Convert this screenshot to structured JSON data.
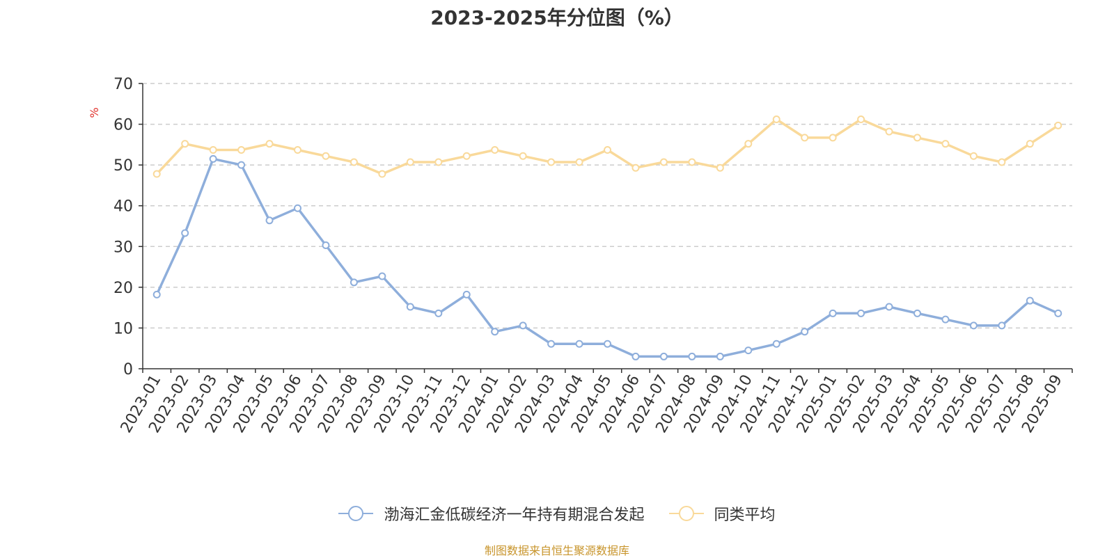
{
  "chart_data": {
    "type": "line",
    "title": "2023-2025年分位图（%）",
    "ylabel": "%",
    "xlabel": "",
    "ylim": [
      0,
      70
    ],
    "yticks": [
      0,
      10,
      20,
      30,
      40,
      50,
      60,
      70
    ],
    "grid": true,
    "legend_position": "bottom-center",
    "categories": [
      "2023-01",
      "2023-02",
      "2023-03",
      "2023-04",
      "2023-05",
      "2023-06",
      "2023-07",
      "2023-08",
      "2023-09",
      "2023-10",
      "2023-11",
      "2023-12",
      "2024-01",
      "2024-02",
      "2024-03",
      "2024-04",
      "2024-05",
      "2024-06",
      "2024-07",
      "2024-08",
      "2024-09",
      "2024-10",
      "2024-11",
      "2024-12",
      "2025-01",
      "2025-02",
      "2025-03",
      "2025-04",
      "2025-05",
      "2025-06",
      "2025-07",
      "2025-08",
      "2025-09"
    ],
    "series": [
      {
        "name": "渤海汇金低碳经济一年持有期混合发起",
        "color": "#8eaedb",
        "values": [
          18.2,
          33.3,
          51.5,
          50.0,
          36.4,
          39.4,
          30.3,
          21.2,
          22.7,
          15.2,
          13.6,
          18.2,
          9.1,
          10.6,
          6.1,
          6.1,
          6.1,
          3.0,
          3.0,
          3.0,
          3.0,
          4.5,
          6.1,
          9.1,
          13.6,
          13.6,
          15.2,
          13.6,
          12.1,
          10.6,
          10.6,
          16.7,
          13.6
        ]
      },
      {
        "name": "同类平均",
        "color": "#f9d99a",
        "values": [
          47.8,
          55.2,
          53.7,
          53.7,
          55.2,
          53.7,
          52.2,
          50.7,
          47.8,
          50.7,
          50.7,
          52.2,
          53.7,
          52.2,
          50.7,
          50.7,
          53.7,
          49.3,
          50.7,
          50.7,
          49.3,
          55.2,
          61.2,
          56.7,
          56.7,
          61.2,
          58.2,
          56.7,
          55.2,
          52.2,
          50.7,
          55.2,
          59.7
        ]
      }
    ]
  },
  "source_text": "制图数据来自恒生聚源数据库"
}
